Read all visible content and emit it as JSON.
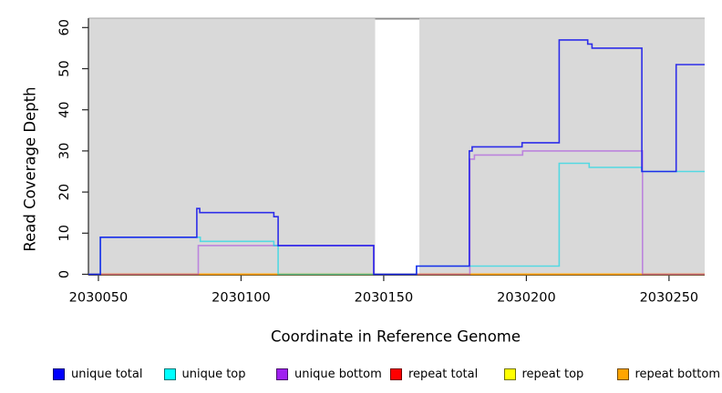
{
  "figure": {
    "type_note": "step coverage plot"
  },
  "chart_data": {
    "type": "line",
    "step_style": true,
    "title": "",
    "xlabel": "Coordinate in Reference Genome",
    "ylabel": "Read Coverage Depth",
    "x_axis": {
      "label": "Coordinate in Reference Genome",
      "range": [
        2030046.5,
        2030262.5
      ],
      "ticks": [
        2030050,
        2030100,
        2030150,
        2030200,
        2030250
      ]
    },
    "y_axis": {
      "label": "Read Coverage Depth",
      "range": [
        -0.22,
        62.28
      ],
      "ticks": [
        0,
        10,
        20,
        30,
        40,
        50,
        60
      ]
    },
    "panel_background": "#d9d9d9",
    "gap_region": {
      "x0": 2030147,
      "x1": 2030162.5,
      "fill": "#ffffff",
      "border": "#8a8a8a"
    },
    "axis_color": "#262626",
    "top_border_color": "#b3b3b3",
    "draw_order": [
      "repeat total",
      "repeat top",
      "repeat bottom",
      "unique bottom",
      "unique top",
      "unique total"
    ],
    "series": [
      {
        "name": "unique total",
        "legend_color": "#0000ff",
        "line_color": "#1414eb",
        "line_opacity": 0.88,
        "steps": [
          [
            2030046.5,
            0
          ],
          [
            2030050.7,
            9
          ],
          [
            2030084.5,
            16
          ],
          [
            2030085.5,
            15
          ],
          [
            2030111.5,
            14
          ],
          [
            2030113,
            7
          ],
          [
            2030146.5,
            0
          ],
          [
            2030161.5,
            2
          ],
          [
            2030180,
            30
          ],
          [
            2030181,
            31
          ],
          [
            2030198.5,
            32
          ],
          [
            2030211.5,
            57
          ],
          [
            2030221.5,
            56
          ],
          [
            2030223,
            55
          ],
          [
            2030240.5,
            25
          ],
          [
            2030252.5,
            51
          ]
        ]
      },
      {
        "name": "unique top",
        "legend_color": "#00ffff",
        "line_color": "#00d8e6",
        "line_opacity": 0.62,
        "steps": [
          [
            2030046.5,
            0
          ],
          [
            2030050.7,
            9
          ],
          [
            2030085.7,
            8
          ],
          [
            2030111.5,
            7
          ],
          [
            2030113,
            0
          ],
          [
            2030161.5,
            2
          ],
          [
            2030211.5,
            27
          ],
          [
            2030222,
            26
          ],
          [
            2030240.5,
            25
          ]
        ]
      },
      {
        "name": "unique bottom",
        "legend_color": "#a020f0",
        "line_color": "#a43ee0",
        "line_opacity": 0.55,
        "steps": [
          [
            2030046.5,
            0
          ],
          [
            2030085,
            7
          ],
          [
            2030146.5,
            0
          ],
          [
            2030180.2,
            28
          ],
          [
            2030181.8,
            29
          ],
          [
            2030198.7,
            30
          ],
          [
            2030240.7,
            0
          ]
        ]
      },
      {
        "name": "repeat total",
        "legend_color": "#ff0000",
        "line_color": "#e00000",
        "line_opacity": 0.8,
        "steps": [
          [
            2030046.5,
            0
          ]
        ]
      },
      {
        "name": "repeat top",
        "legend_color": "#ffff00",
        "line_color": "#ffff00",
        "line_opacity": 1,
        "steps": [
          [
            2030046.5,
            0
          ]
        ]
      },
      {
        "name": "repeat bottom",
        "legend_color": "#ffa500",
        "line_color": "#ff9f00",
        "line_opacity": 1,
        "steps": [
          [
            2030046.5,
            0
          ]
        ]
      }
    ],
    "legend": {
      "position": "bottom",
      "entries": [
        "unique total",
        "unique top",
        "unique bottom",
        "repeat total",
        "repeat top",
        "repeat bottom"
      ]
    }
  }
}
